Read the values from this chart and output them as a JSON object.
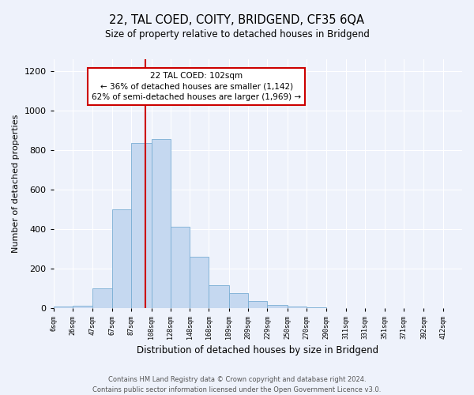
{
  "title": "22, TAL COED, COITY, BRIDGEND, CF35 6QA",
  "subtitle": "Size of property relative to detached houses in Bridgend",
  "xlabel": "Distribution of detached houses by size in Bridgend",
  "ylabel": "Number of detached properties",
  "bar_color": "#c5d8f0",
  "bar_edge_color": "#7aaed4",
  "background_color": "#eef2fb",
  "grid_color": "#ffffff",
  "tick_labels": [
    "6sqm",
    "26sqm",
    "47sqm",
    "67sqm",
    "87sqm",
    "108sqm",
    "128sqm",
    "148sqm",
    "168sqm",
    "189sqm",
    "209sqm",
    "229sqm",
    "250sqm",
    "270sqm",
    "290sqm",
    "311sqm",
    "331sqm",
    "351sqm",
    "371sqm",
    "392sqm",
    "412sqm"
  ],
  "bin_edges": [
    6,
    26,
    47,
    67,
    87,
    108,
    128,
    148,
    168,
    189,
    209,
    229,
    250,
    270,
    290,
    311,
    331,
    351,
    371,
    392,
    412
  ],
  "bar_heights": [
    5,
    10,
    100,
    500,
    835,
    855,
    410,
    260,
    115,
    75,
    35,
    15,
    5,
    1,
    0,
    0,
    0,
    0,
    0,
    0
  ],
  "ylim": [
    0,
    1260
  ],
  "yticks": [
    0,
    200,
    400,
    600,
    800,
    1000,
    1200
  ],
  "vline_x": 102,
  "vline_color": "#cc0000",
  "annotation_title": "22 TAL COED: 102sqm",
  "annotation_line1": "← 36% of detached houses are smaller (1,142)",
  "annotation_line2": "62% of semi-detached houses are larger (1,969) →",
  "annotation_box_color": "#cc0000",
  "footer_line1": "Contains HM Land Registry data © Crown copyright and database right 2024.",
  "footer_line2": "Contains public sector information licensed under the Open Government Licence v3.0."
}
